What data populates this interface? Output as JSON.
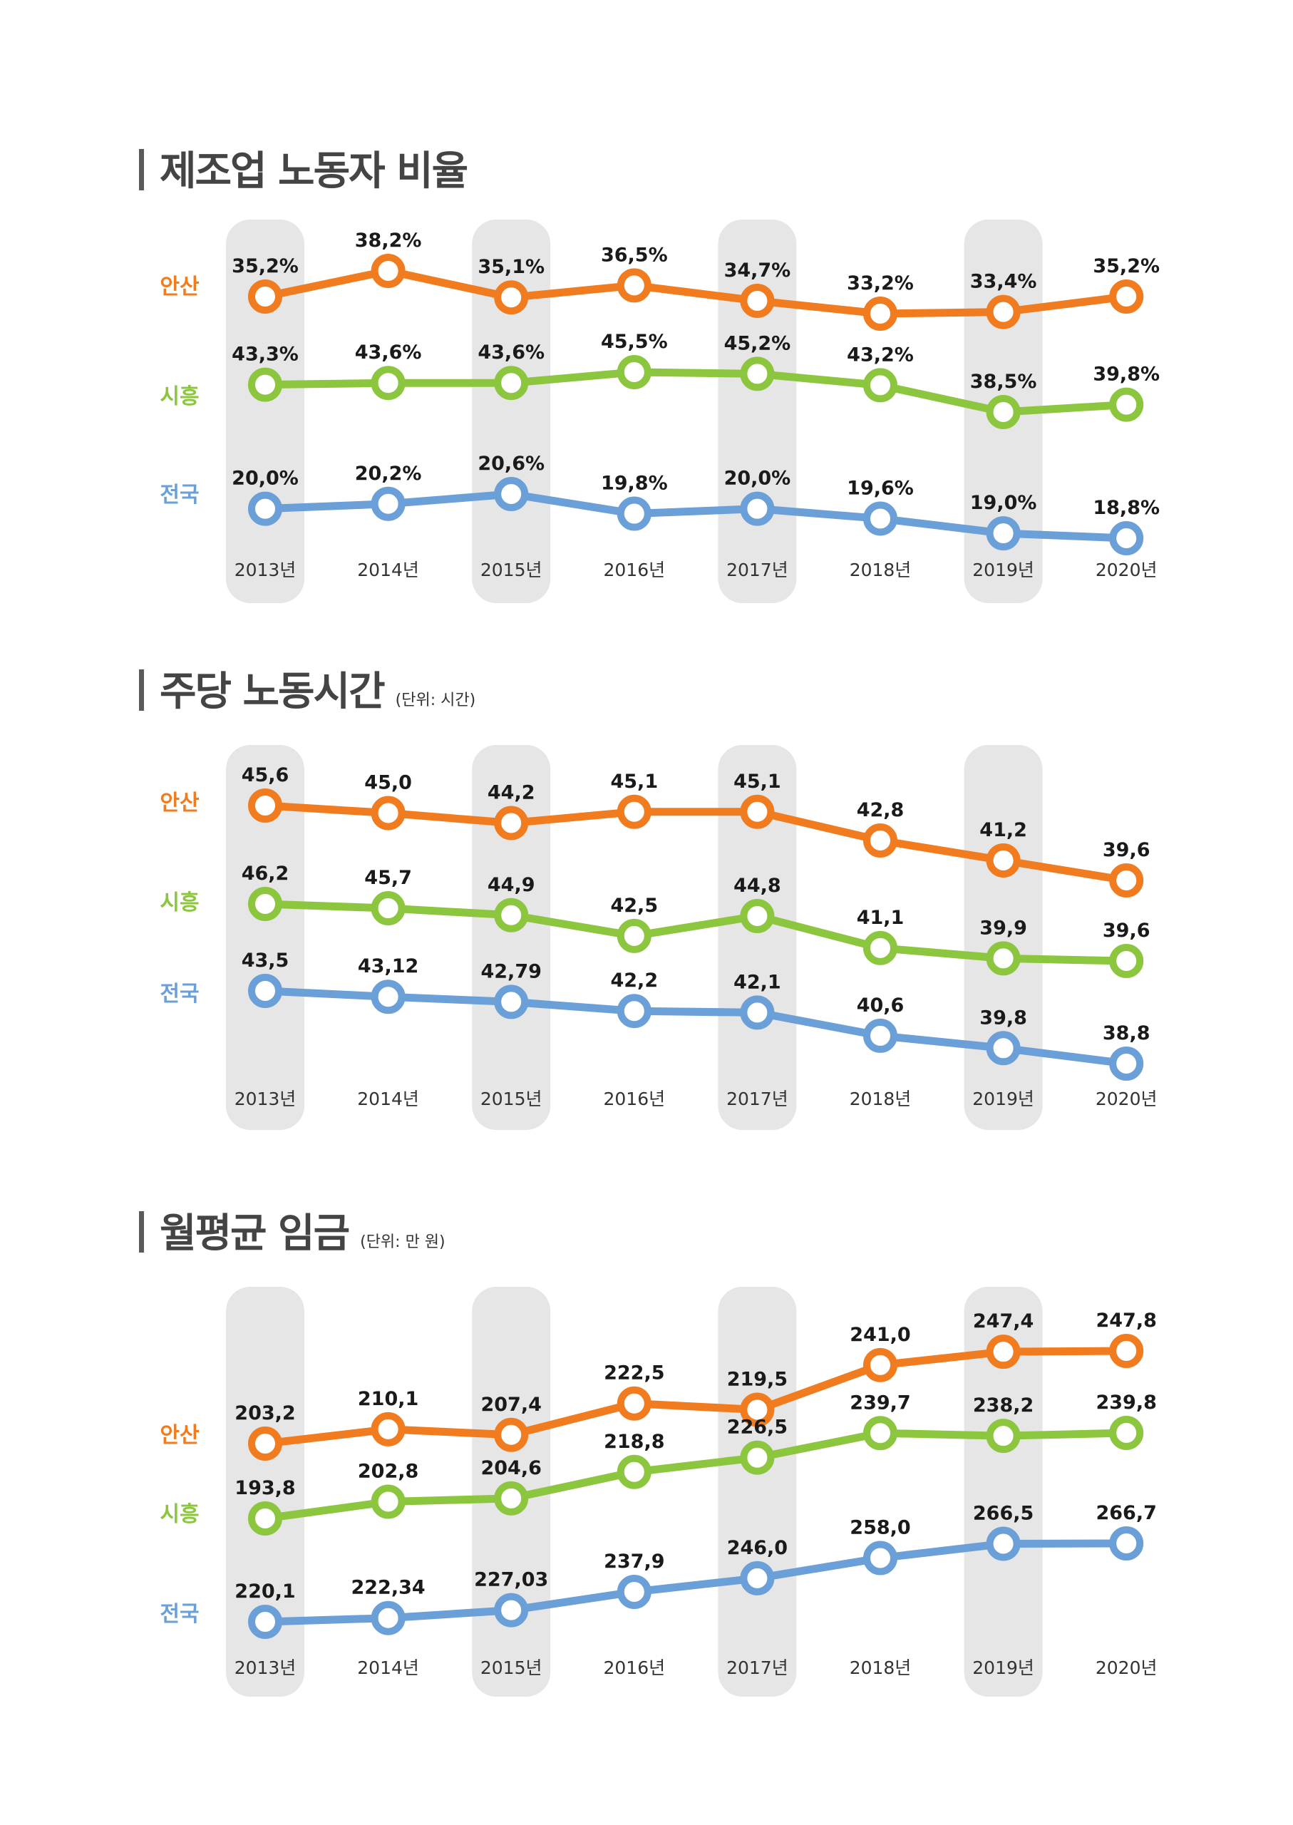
{
  "colors": {
    "ansan": "#f07c1f",
    "siheung": "#8cc63f",
    "national": "#6a9fd8",
    "band": "#e6e6e6"
  },
  "chart_data": [
    {
      "type": "line",
      "title": "제조업 노동자 비율",
      "unit": "",
      "categories": [
        "2013년",
        "2014년",
        "2015년",
        "2016년",
        "2017년",
        "2018년",
        "2019년",
        "2020년"
      ],
      "series": [
        {
          "name": "안산",
          "values": [
            35.2,
            38.2,
            35.1,
            36.5,
            34.7,
            33.2,
            33.4,
            35.2
          ],
          "labels": [
            "35,2%",
            "38,2%",
            "35,1%",
            "36,5%",
            "34,7%",
            "33,2%",
            "33,4%",
            "35,2%"
          ]
        },
        {
          "name": "시흥",
          "values": [
            43.3,
            43.6,
            43.6,
            45.5,
            45.2,
            43.2,
            38.5,
            39.8
          ],
          "labels": [
            "43,3%",
            "43,6%",
            "43,6%",
            "45,5%",
            "45,2%",
            "43,2%",
            "38,5%",
            "39,8%"
          ]
        },
        {
          "name": "전국",
          "values": [
            20.0,
            20.2,
            20.6,
            19.8,
            20.0,
            19.6,
            19.0,
            18.8
          ],
          "labels": [
            "20,0%",
            "20,2%",
            "20,6%",
            "19,8%",
            "20,0%",
            "19,6%",
            "19,0%",
            "18,8%"
          ]
        }
      ]
    },
    {
      "type": "line",
      "title": "주당 노동시간",
      "unit": "(단위: 시간)",
      "categories": [
        "2013년",
        "2014년",
        "2015년",
        "2016년",
        "2017년",
        "2018년",
        "2019년",
        "2020년"
      ],
      "series": [
        {
          "name": "안산",
          "values": [
            45.6,
            45.0,
            44.2,
            45.1,
            45.1,
            42.8,
            41.2,
            39.6
          ],
          "labels": [
            "45,6",
            "45,0",
            "44,2",
            "45,1",
            "45,1",
            "42,8",
            "41,2",
            "39,6"
          ]
        },
        {
          "name": "시흥",
          "values": [
            46.2,
            45.7,
            44.9,
            42.5,
            44.8,
            41.1,
            39.9,
            39.6
          ],
          "labels": [
            "46,2",
            "45,7",
            "44,9",
            "42,5",
            "44,8",
            "41,1",
            "39,9",
            "39,6"
          ]
        },
        {
          "name": "전국",
          "values": [
            43.5,
            43.12,
            42.79,
            42.2,
            42.1,
            40.6,
            39.8,
            38.8
          ],
          "labels": [
            "43,5",
            "43,12",
            "42,79",
            "42,2",
            "42,1",
            "40,6",
            "39,8",
            "38,8"
          ]
        }
      ]
    },
    {
      "type": "line",
      "title": "월평균 임금",
      "unit": "(단위: 만 원)",
      "categories": [
        "2013년",
        "2014년",
        "2015년",
        "2016년",
        "2017년",
        "2018년",
        "2019년",
        "2020년"
      ],
      "series": [
        {
          "name": "안산",
          "values": [
            203.2,
            210.1,
            207.4,
            222.5,
            219.5,
            241.0,
            247.4,
            247.8
          ],
          "labels": [
            "203,2",
            "210,1",
            "207,4",
            "222,5",
            "219,5",
            "241,0",
            "247,4",
            "247,8"
          ]
        },
        {
          "name": "시흥",
          "values": [
            193.8,
            202.8,
            204.6,
            218.8,
            226.5,
            239.7,
            238.2,
            239.8
          ],
          "labels": [
            "193,8",
            "202,8",
            "204,6",
            "218,8",
            "226,5",
            "239,7",
            "238,2",
            "239,8"
          ]
        },
        {
          "name": "전국",
          "values": [
            220.1,
            222.34,
            227.03,
            237.9,
            246.0,
            258.0,
            266.5,
            266.7
          ],
          "labels": [
            "220,1",
            "222,34",
            "227,03",
            "237,9",
            "246,0",
            "258,0",
            "266,5",
            "266,7"
          ]
        }
      ]
    }
  ]
}
